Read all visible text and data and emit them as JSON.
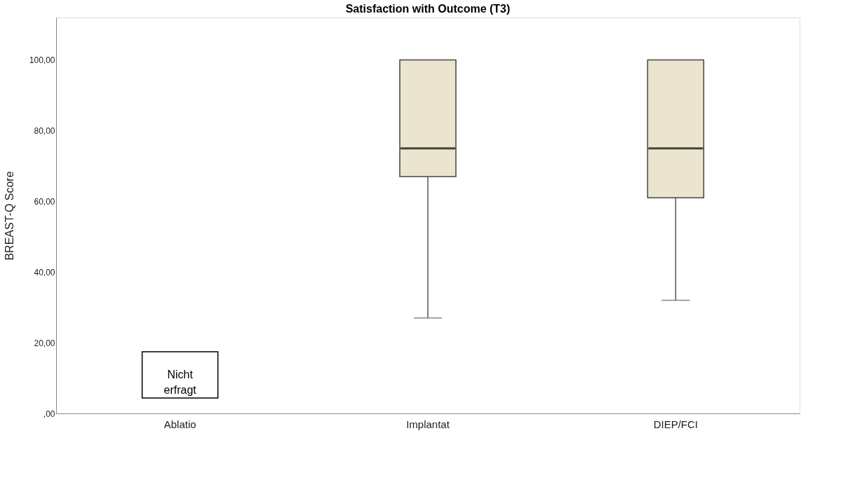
{
  "chart_data": {
    "type": "box",
    "title": "Satisfaction with Outcome (T3)",
    "ylabel": "BREAST-Q Score",
    "categories": [
      "Ablatio",
      "Implantat",
      "DIEP/FCI"
    ],
    "boxes": [
      null,
      {
        "low": 27,
        "q1": 67,
        "median": 75,
        "q3": 100,
        "high": 100
      },
      {
        "low": 32,
        "q1": 61,
        "median": 75,
        "q3": 100,
        "high": 100
      }
    ],
    "color": "#ebe5cf",
    "ylim": [
      0,
      112
    ],
    "yticks": [
      {
        "value": 0,
        "label": ",00"
      },
      {
        "value": 20,
        "label": "20,00"
      },
      {
        "value": 40,
        "label": "40,00"
      },
      {
        "value": 60,
        "label": "60,00"
      },
      {
        "value": 80,
        "label": "80,00"
      },
      {
        "value": 100,
        "label": "100,00"
      }
    ],
    "grid": false,
    "annotations": [
      "Nicht\nerfragt"
    ]
  }
}
